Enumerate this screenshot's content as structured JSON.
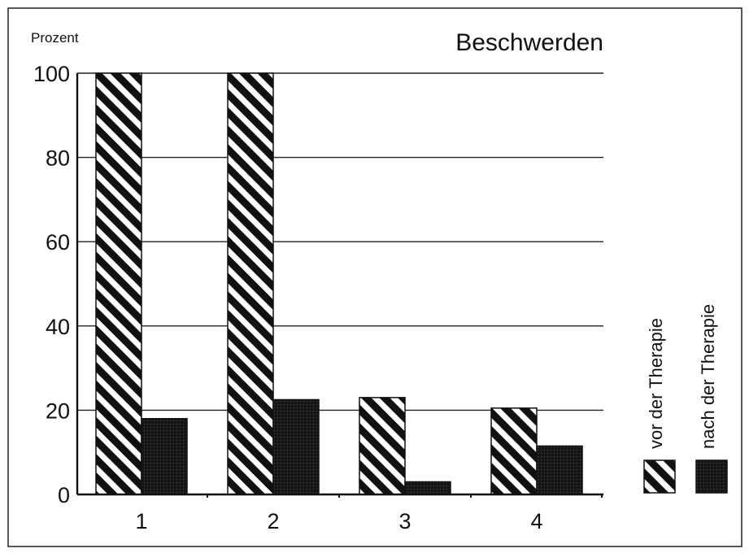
{
  "chart_data": {
    "type": "bar",
    "title": "Beschwerden",
    "ylabel": "Prozent",
    "xlabel": "",
    "categories": [
      "1",
      "2",
      "3",
      "4"
    ],
    "ylim": [
      0,
      100
    ],
    "yticks": [
      "0",
      "20",
      "40",
      "60",
      "80",
      "100"
    ],
    "grid": true,
    "legend_position": "right",
    "series": [
      {
        "name": "vor der Therapie",
        "values": [
          100,
          100,
          23,
          20.5
        ],
        "pattern": "diagonal-hatch"
      },
      {
        "name": "nach der Therapie",
        "values": [
          18,
          22.5,
          3,
          11.5
        ],
        "pattern": "dense-dots"
      }
    ],
    "colors": {
      "ink": "#111111",
      "background": "#ffffff"
    }
  }
}
